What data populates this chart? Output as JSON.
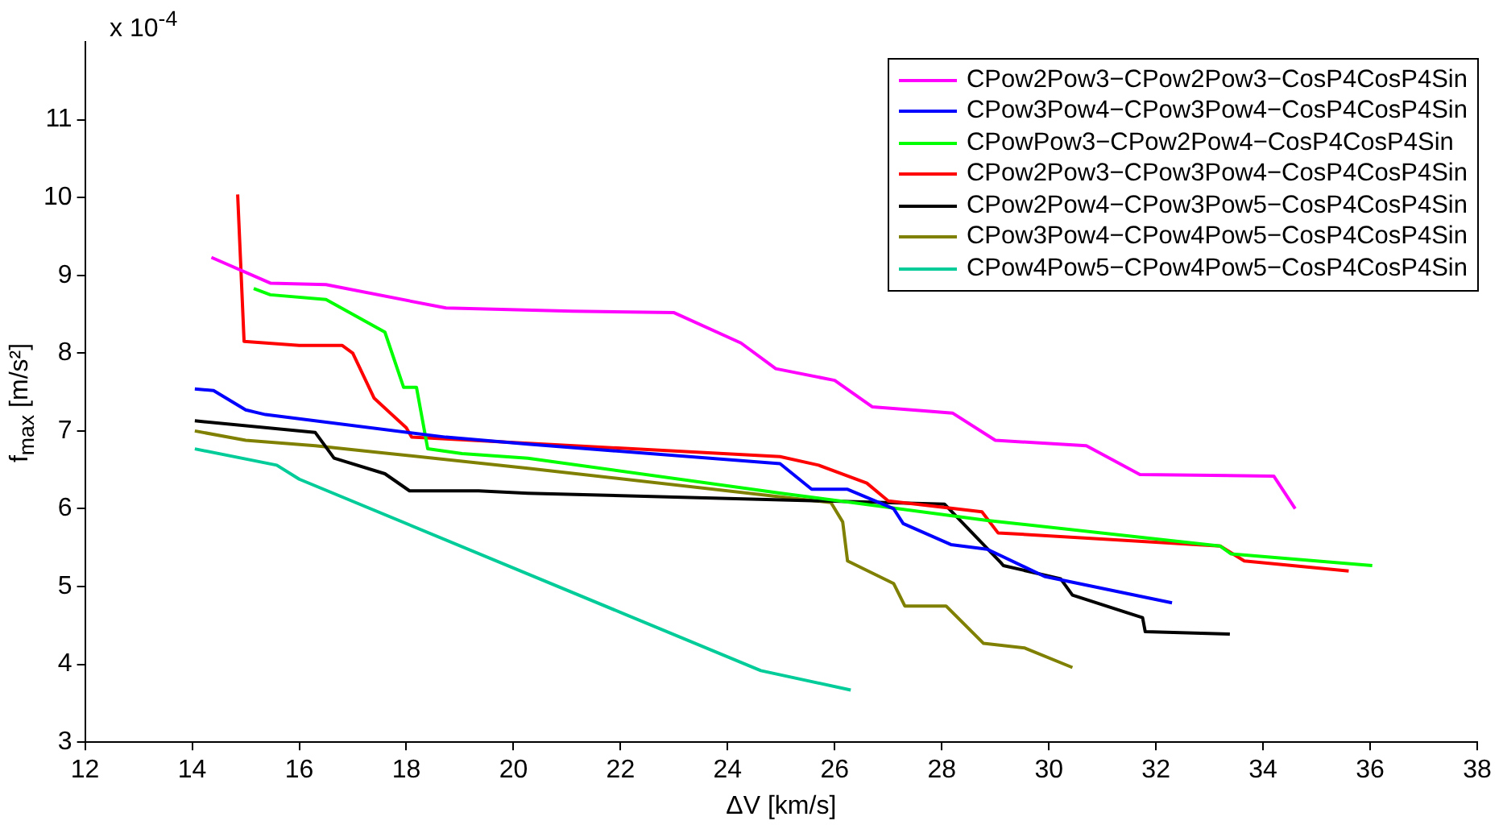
{
  "chart_data": {
    "type": "line",
    "xlabel": "ΔV [km/s]",
    "ylabel": "f$_{max}$ [m/s²]",
    "annotations": [
      "x 10$^{-4}$"
    ],
    "xlim": [
      12,
      38
    ],
    "xticks": [
      12,
      14,
      16,
      18,
      20,
      22,
      24,
      26,
      28,
      30,
      32,
      34,
      36,
      38
    ],
    "ylim": [
      3,
      12
    ],
    "yticks": [
      3,
      4,
      5,
      6,
      7,
      8,
      9,
      10,
      11
    ],
    "grid": false,
    "legend": "top right",
    "marker": "none",
    "line_style": "solid",
    "series": [
      {
        "name": "CPow2Pow3−CPow2Pow3−CosP4CosP4Sin",
        "color": "#ff00ff",
        "x": [
          14.36,
          15.46,
          16.5,
          18.74,
          21.1,
          23.0,
          24.25,
          24.9,
          26.0,
          26.7,
          28.2,
          29.0,
          30.7,
          31.7,
          34.2,
          34.6
        ],
        "values": [
          9.23,
          8.9,
          8.88,
          8.58,
          8.54,
          8.52,
          8.13,
          7.8,
          7.65,
          7.31,
          7.23,
          6.88,
          6.81,
          6.44,
          6.42,
          6.0
        ]
      },
      {
        "name": "CPow3Pow4−CPow3Pow4−CosP4CosP4Sin",
        "color": "#0000ff",
        "x": [
          14.05,
          14.4,
          15.0,
          15.37,
          18.74,
          20.27,
          24.98,
          25.57,
          26.24,
          27.1,
          27.28,
          28.17,
          28.85,
          29.92,
          32.3
        ],
        "values": [
          7.54,
          7.52,
          7.27,
          7.21,
          6.92,
          6.83,
          6.58,
          6.25,
          6.25,
          6.0,
          5.81,
          5.54,
          5.48,
          5.13,
          4.79
        ]
      },
      {
        "name": "CPowPow3−CPow2Pow4−CosP4CosP4Sin",
        "color": "#00ff00",
        "x": [
          15.15,
          15.46,
          16.5,
          17.6,
          17.95,
          18.19,
          18.4,
          19.04,
          20.27,
          25.0,
          28.85,
          33.2,
          33.4,
          36.04
        ],
        "values": [
          8.83,
          8.75,
          8.69,
          8.27,
          7.56,
          7.56,
          6.77,
          6.71,
          6.65,
          6.2,
          5.85,
          5.52,
          5.42,
          5.27
        ]
      },
      {
        "name": "CPow2Pow3−CPow3Pow4−CosP4CosP4Sin",
        "color": "#ff0000",
        "x": [
          14.85,
          14.97,
          16.0,
          16.8,
          17.0,
          17.4,
          18.0,
          18.1,
          24.98,
          25.7,
          26.6,
          27.0,
          28.75,
          29.05,
          33.2,
          33.65,
          35.6
        ],
        "values": [
          10.04,
          8.15,
          8.1,
          8.1,
          8.0,
          7.42,
          7.04,
          6.92,
          6.67,
          6.56,
          6.33,
          6.1,
          5.96,
          5.69,
          5.52,
          5.33,
          5.2
        ]
      },
      {
        "name": "CPow2Pow4−CPow3Pow5−CosP4CosP4Sin",
        "color": "#000000",
        "x": [
          14.05,
          16.3,
          16.65,
          17.6,
          18.06,
          19.35,
          20.27,
          28.05,
          29.1,
          29.15,
          30.22,
          30.44,
          31.75,
          31.8,
          33.38
        ],
        "values": [
          7.13,
          6.98,
          6.65,
          6.45,
          6.23,
          6.23,
          6.2,
          6.06,
          5.31,
          5.27,
          5.1,
          4.89,
          4.6,
          4.42,
          4.39
        ]
      },
      {
        "name": "CPow3Pow4−CPow4Pow5−CosP4CosP4Sin",
        "color": "#808000",
        "x": [
          14.05,
          15.0,
          16.3,
          17.4,
          20.27,
          25.93,
          26.15,
          26.24,
          27.1,
          27.31,
          28.08,
          28.78,
          29.55,
          30.44
        ],
        "values": [
          7.0,
          6.88,
          6.81,
          6.73,
          6.52,
          6.08,
          5.83,
          5.33,
          5.04,
          4.75,
          4.75,
          4.27,
          4.21,
          3.96
        ]
      },
      {
        "name": "CPow4Pow5−CPow4Pow5−CosP4CosP4Sin",
        "color": "#00cc99",
        "x": [
          14.05,
          15.58,
          16.0,
          24.62,
          26.3
        ],
        "values": [
          6.77,
          6.56,
          6.38,
          3.92,
          3.67
        ]
      }
    ]
  }
}
